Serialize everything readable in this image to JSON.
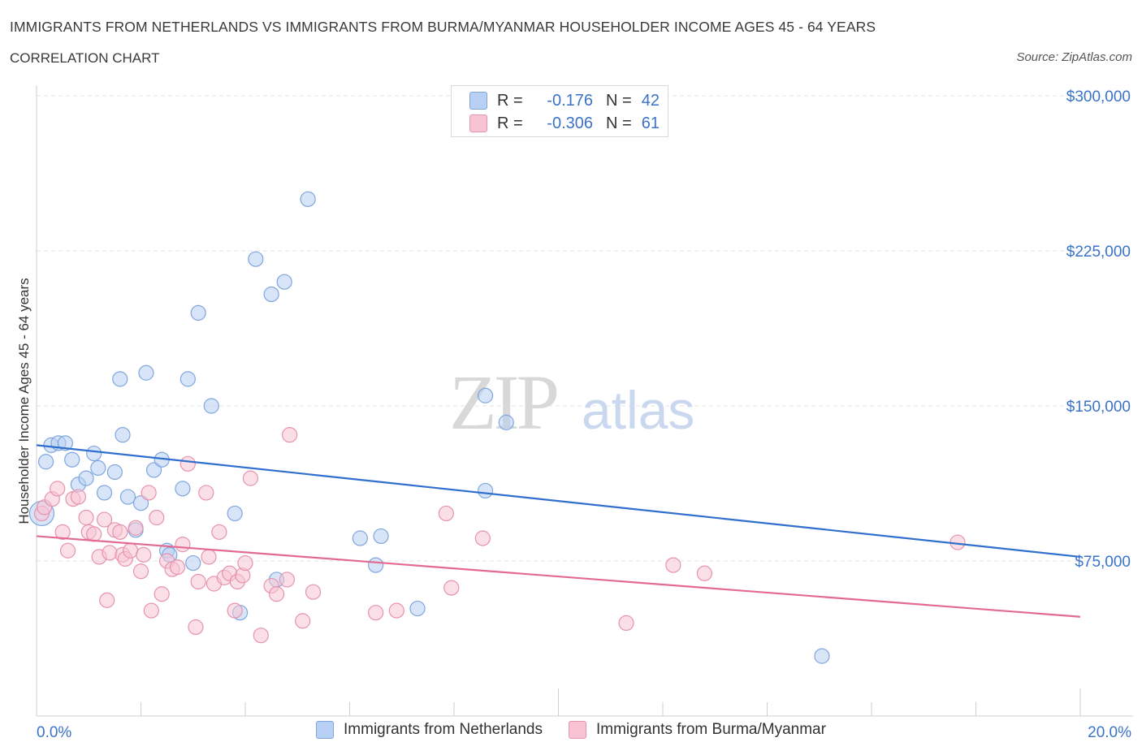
{
  "header": {
    "title": "IMMIGRANTS FROM NETHERLANDS VS IMMIGRANTS FROM BURMA/MYANMAR HOUSEHOLDER INCOME AGES 45 - 64 YEARS",
    "subtitle": "CORRELATION CHART",
    "source": "Source: ZipAtlas.com"
  },
  "watermark": {
    "zip": "ZIP",
    "atlas": "atlas"
  },
  "legend": {
    "rows": [
      {
        "r_label": "R =",
        "r_value": "-0.176",
        "n_label": "N =",
        "n_value": "42",
        "color": "#b8d0f3",
        "border": "#7fa6dc"
      },
      {
        "r_label": "R =",
        "r_value": "-0.306",
        "n_label": "N =",
        "n_value": "61",
        "color": "#f8c4d3",
        "border": "#e693ad"
      }
    ]
  },
  "colors": {
    "blue_fill": "#b8d0f3",
    "blue_stroke": "#7fa6dc",
    "blue_line": "#2f6fce",
    "pink_fill": "#f8c4d3",
    "pink_stroke": "#e693ad",
    "pink_line": "#e36b93",
    "axis_text": "#3b73c7",
    "grid": "#e3e3e3"
  },
  "chart_data": {
    "type": "scatter",
    "ylabel": "Householder Income Ages 45 - 64 years",
    "x_tick_labels": [
      "0.0%",
      "20.0%"
    ],
    "y_tick_labels": [
      "$300,000",
      "$225,000",
      "$150,000",
      "$75,000"
    ],
    "xlim": [
      0,
      20
    ],
    "ylim": [
      0,
      310000
    ],
    "y_ticks": [
      300000,
      225000,
      150000,
      75000
    ],
    "grid": true,
    "legend_placement": "bottom",
    "series": [
      {
        "name": "Immigrants from Netherlands",
        "trend": {
          "x": [
            0,
            20
          ],
          "y": [
            131000,
            77000
          ]
        },
        "points": [
          [
            0.18,
            123000
          ],
          [
            0.28,
            131000
          ],
          [
            0.42,
            132000
          ],
          [
            0.55,
            132000
          ],
          [
            0.68,
            124000
          ],
          [
            0.8,
            112000
          ],
          [
            0.95,
            115000
          ],
          [
            1.1,
            127000
          ],
          [
            1.18,
            120000
          ],
          [
            1.3,
            108000
          ],
          [
            1.5,
            118000
          ],
          [
            1.6,
            163000
          ],
          [
            1.65,
            136000
          ],
          [
            1.75,
            106000
          ],
          [
            1.9,
            90000
          ],
          [
            2.0,
            103000
          ],
          [
            2.1,
            166000
          ],
          [
            2.25,
            119000
          ],
          [
            2.4,
            124000
          ],
          [
            2.5,
            80000
          ],
          [
            2.55,
            78000
          ],
          [
            2.8,
            110000
          ],
          [
            2.9,
            163000
          ],
          [
            3.0,
            74000
          ],
          [
            3.1,
            195000
          ],
          [
            3.35,
            150000
          ],
          [
            3.8,
            98000
          ],
          [
            3.9,
            50000
          ],
          [
            4.2,
            221000
          ],
          [
            4.5,
            204000
          ],
          [
            4.6,
            66000
          ],
          [
            4.75,
            210000
          ],
          [
            5.2,
            250000
          ],
          [
            6.2,
            86000
          ],
          [
            6.5,
            73000
          ],
          [
            6.6,
            87000
          ],
          [
            7.3,
            52000
          ],
          [
            8.6,
            155000
          ],
          [
            8.6,
            109000
          ],
          [
            9.0,
            142000
          ],
          [
            15.05,
            29000
          ],
          [
            0.1,
            98000
          ]
        ]
      },
      {
        "name": "Immigrants from Burma/Myanmar",
        "trend": {
          "x": [
            0,
            20
          ],
          "y": [
            87000,
            48000
          ]
        },
        "points": [
          [
            0.1,
            98000
          ],
          [
            0.15,
            101000
          ],
          [
            0.3,
            105000
          ],
          [
            0.4,
            110000
          ],
          [
            0.5,
            89000
          ],
          [
            0.6,
            80000
          ],
          [
            0.7,
            105000
          ],
          [
            0.8,
            106000
          ],
          [
            0.95,
            96000
          ],
          [
            1.0,
            89000
          ],
          [
            1.1,
            88000
          ],
          [
            1.2,
            77000
          ],
          [
            1.3,
            95000
          ],
          [
            1.4,
            79000
          ],
          [
            1.5,
            90000
          ],
          [
            1.6,
            89000
          ],
          [
            1.65,
            78000
          ],
          [
            1.7,
            76000
          ],
          [
            1.8,
            80000
          ],
          [
            1.9,
            91000
          ],
          [
            2.0,
            70000
          ],
          [
            2.05,
            78000
          ],
          [
            2.15,
            108000
          ],
          [
            2.3,
            96000
          ],
          [
            2.4,
            59000
          ],
          [
            2.5,
            75000
          ],
          [
            2.6,
            71000
          ],
          [
            2.7,
            72000
          ],
          [
            2.8,
            83000
          ],
          [
            2.9,
            122000
          ],
          [
            3.05,
            43000
          ],
          [
            3.1,
            65000
          ],
          [
            3.25,
            108000
          ],
          [
            3.3,
            77000
          ],
          [
            3.4,
            64000
          ],
          [
            3.5,
            89000
          ],
          [
            3.6,
            67000
          ],
          [
            3.7,
            69000
          ],
          [
            3.8,
            51000
          ],
          [
            3.85,
            65000
          ],
          [
            3.95,
            68000
          ],
          [
            4.0,
            74000
          ],
          [
            4.1,
            115000
          ],
          [
            4.3,
            39000
          ],
          [
            4.5,
            63000
          ],
          [
            4.6,
            59000
          ],
          [
            4.8,
            66000
          ],
          [
            4.85,
            136000
          ],
          [
            5.1,
            46000
          ],
          [
            5.3,
            60000
          ],
          [
            6.5,
            50000
          ],
          [
            6.9,
            51000
          ],
          [
            7.85,
            98000
          ],
          [
            7.95,
            62000
          ],
          [
            8.55,
            86000
          ],
          [
            11.3,
            45000
          ],
          [
            12.2,
            73000
          ],
          [
            12.8,
            69000
          ],
          [
            17.65,
            84000
          ],
          [
            2.2,
            51000
          ],
          [
            1.35,
            56000
          ]
        ]
      }
    ]
  }
}
